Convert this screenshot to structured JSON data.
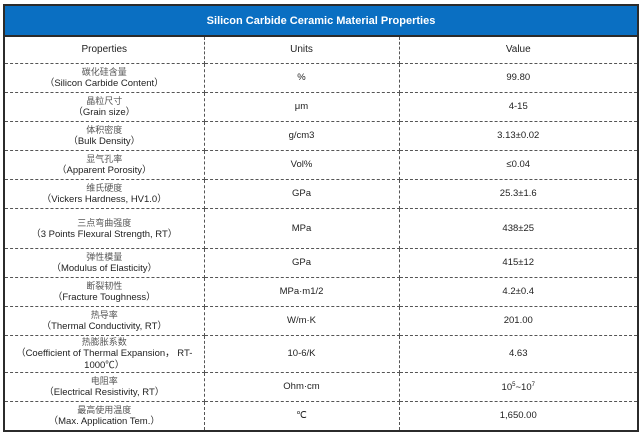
{
  "title": "Silicon Carbide Ceramic Material Properties",
  "headers": [
    "Properties",
    "Units",
    "Value"
  ],
  "rows": [
    {
      "zh": "碳化硅含量",
      "en": "（Silicon Carbide Content）",
      "unit": "%",
      "value": "99.80"
    },
    {
      "zh": "晶粒尺寸",
      "en": "（Grain size）",
      "unit": "μm",
      "value": "4-15"
    },
    {
      "zh": "体积密度",
      "en": "（Bulk Density）",
      "unit": "g/cm3",
      "value": "3.13±0.02"
    },
    {
      "zh": "显气孔率",
      "en": "（Apparent Porosity）",
      "unit": "Vol%",
      "value": "≤0.04"
    },
    {
      "zh": "维氏硬度",
      "en": "（Vickers Hardness, HV1.0）",
      "unit": "GPa",
      "value": "25.3±1.6"
    },
    {
      "zh": "三点弯曲强度",
      "en": "（3 Points Flexural Strength, RT）",
      "unit": "MPa",
      "value": "438±25"
    },
    {
      "zh": "弹性模量",
      "en": "（Modulus of Elasticity）",
      "unit": "GPa",
      "value": "415±12"
    },
    {
      "zh": "断裂韧性",
      "en": "（Fracture Toughness）",
      "unit": "MPa·m1/2",
      "value": "4.2±0.4"
    },
    {
      "zh": "热导率",
      "en": "（Thermal Conductivity, RT）",
      "unit": "W/m·K",
      "value": "201.00"
    },
    {
      "zh": "热膨胀系数",
      "en": "（Coefficient of Thermal Expansion， RT-1000℃）",
      "unit": "10-6/K",
      "value": "4.63"
    },
    {
      "zh": "电阻率",
      "en": "（Electrical Resistivity, RT）",
      "unit": "Ohm·cm",
      "value_base1": "10",
      "value_exp1": "5",
      "value_sep": "~",
      "value_base2": "10",
      "value_exp2": "7"
    },
    {
      "zh": "最高使用温度",
      "en": "（Max. Application Tem.）",
      "unit": "℃",
      "value": "1,650.00"
    }
  ]
}
